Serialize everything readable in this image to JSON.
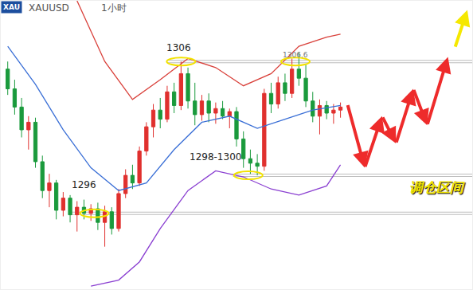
{
  "chart_data": {
    "type": "candlestick",
    "title": "XAUUSD",
    "subtitle": "1小时",
    "logo": "XAU",
    "x": [
      0,
      1,
      2,
      3,
      4,
      5,
      6,
      7,
      8,
      9,
      10,
      11,
      12,
      13,
      14,
      15,
      16,
      17,
      18,
      19,
      20,
      21,
      22,
      23,
      24,
      25,
      26,
      27,
      28,
      29,
      30,
      31,
      32,
      33,
      34,
      35,
      36,
      37,
      38,
      39,
      40,
      41,
      42,
      43,
      44,
      45,
      46,
      47,
      48
    ],
    "open": [
      1305.5,
      1304.2,
      1303.0,
      1301.5,
      1302.0,
      1299.4,
      1297.5,
      1298.0,
      1296.2,
      1297.0,
      1295.9,
      1296.4,
      1296.0,
      1296.3,
      1295.4,
      1296.1,
      1295.0,
      1297.3,
      1298.5,
      1298.0,
      1300.1,
      1301.7,
      1302.8,
      1302.2,
      1304.0,
      1303.1,
      1305.2,
      1303.4,
      1302.5,
      1303.4,
      1302.6,
      1302.9,
      1302.4,
      1302.7,
      1300.9,
      1299.6,
      1299.3,
      1299.1,
      1303.9,
      1303.2,
      1304.6,
      1303.9,
      1305.5,
      1304.9,
      1303.4,
      1302.4,
      1303.1,
      1302.6,
      1302.8
    ],
    "high": [
      1306.0,
      1304.8,
      1303.6,
      1302.4,
      1302.3,
      1299.8,
      1298.6,
      1298.2,
      1297.4,
      1297.2,
      1296.8,
      1296.9,
      1296.6,
      1296.7,
      1296.5,
      1296.4,
      1297.6,
      1298.9,
      1299.2,
      1300.4,
      1302.0,
      1303.2,
      1303.6,
      1304.4,
      1304.6,
      1306.0,
      1305.6,
      1304.6,
      1303.8,
      1303.9,
      1303.3,
      1303.4,
      1302.9,
      1303.0,
      1301.4,
      1300.2,
      1299.9,
      1304.2,
      1304.6,
      1305.0,
      1305.2,
      1306.2,
      1306.6,
      1305.8,
      1304.0,
      1303.5,
      1303.4,
      1303.2,
      1303.3
    ],
    "low": [
      1303.8,
      1302.5,
      1301.0,
      1300.2,
      1299.0,
      1297.0,
      1296.4,
      1295.6,
      1295.8,
      1295.4,
      1294.8,
      1295.6,
      1295.5,
      1294.9,
      1293.8,
      1294.6,
      1294.8,
      1297.0,
      1297.6,
      1297.8,
      1299.8,
      1301.0,
      1301.6,
      1302.0,
      1302.6,
      1302.8,
      1302.9,
      1301.8,
      1302.1,
      1302.0,
      1301.9,
      1302.2,
      1301.6,
      1300.4,
      1299.0,
      1298.6,
      1298.5,
      1298.8,
      1302.6,
      1302.9,
      1303.4,
      1303.6,
      1304.4,
      1303.0,
      1302.0,
      1301.2,
      1302.2,
      1301.9,
      1302.3
    ],
    "close": [
      1304.2,
      1303.0,
      1301.5,
      1302.0,
      1299.4,
      1297.5,
      1298.0,
      1296.2,
      1297.0,
      1295.9,
      1296.4,
      1296.0,
      1296.3,
      1295.4,
      1296.1,
      1295.0,
      1297.3,
      1298.5,
      1298.0,
      1300.1,
      1301.7,
      1302.8,
      1302.2,
      1304.0,
      1303.1,
      1305.2,
      1303.4,
      1302.5,
      1303.4,
      1302.6,
      1302.9,
      1302.4,
      1302.7,
      1300.9,
      1299.6,
      1299.3,
      1299.1,
      1303.9,
      1303.2,
      1304.6,
      1303.9,
      1305.5,
      1304.9,
      1303.4,
      1302.4,
      1303.1,
      1302.6,
      1302.8,
      1303.0
    ],
    "xlim": [
      -1,
      67
    ],
    "ylim": [
      1291,
      1310
    ],
    "tick_labels": false,
    "grid": false,
    "series": [
      {
        "type": "line",
        "color": "#3a6fd6",
        "x": [
          0,
          4,
          8,
          12,
          16,
          20,
          24,
          28,
          32,
          36,
          40,
          44,
          48
        ],
        "values": [
          1307,
          1304.5,
          1301.5,
          1299,
          1297.5,
          1298,
          1300.2,
          1302,
          1302.4,
          1301.6,
          1302.2,
          1302.8,
          1303.1
        ]
      },
      {
        "type": "line",
        "color": "#d9403a",
        "x": [
          10,
          14,
          18,
          22,
          26,
          30,
          34,
          38,
          42,
          46,
          48
        ],
        "values": [
          1310,
          1306,
          1303.5,
          1304.8,
          1306.2,
          1305.6,
          1304.4,
          1305.2,
          1307,
          1307.6,
          1307.8
        ]
      },
      {
        "type": "line",
        "color": "#8a3fd1",
        "x": [
          12,
          16,
          19,
          22,
          26,
          30,
          34,
          38,
          42,
          46,
          48
        ],
        "values": [
          1291.2,
          1291.6,
          1292.8,
          1295,
          1297.5,
          1298.8,
          1298.4,
          1297.6,
          1297.2,
          1297.8,
          1299.2
        ]
      },
      {
        "type": "scatter",
        "marker": "ellipse",
        "color": "#f2e200",
        "x": [
          12.5,
          25,
          34.7,
          41.5
        ],
        "values": [
          1296,
          1306,
          1298.5,
          1306
        ]
      },
      {
        "type": "arrow",
        "color": "#ee2b2b",
        "x": [
          49,
          51.5,
          54,
          56,
          58.5,
          60.5,
          63.5
        ],
        "values": [
          1303.2,
          1299,
          1302.4,
          1300.6,
          1304.2,
          1301.8,
          1306.3
        ]
      },
      {
        "type": "arrow",
        "color": "#f5e800",
        "x": [
          64.5,
          66.3
        ],
        "values": [
          1306.9,
          1309.4
        ]
      }
    ],
    "levels": [
      {
        "value": 1306,
        "start": 23
      },
      {
        "value": 1298.5,
        "start": 32.5
      },
      {
        "value": 1296,
        "start": 9
      }
    ],
    "annotations": [
      {
        "text": "1306",
        "x": 24.7,
        "y": 1306.9
      },
      {
        "text": "1306.6",
        "x": 41.5,
        "y": 1306.45
      },
      {
        "text": "1298-1300",
        "x": 30,
        "y": 1299.7
      },
      {
        "text": "1296",
        "x": 11,
        "y": 1297.85
      },
      {
        "text": "调仓区间",
        "x": 62,
        "y": 1297.7
      }
    ]
  }
}
